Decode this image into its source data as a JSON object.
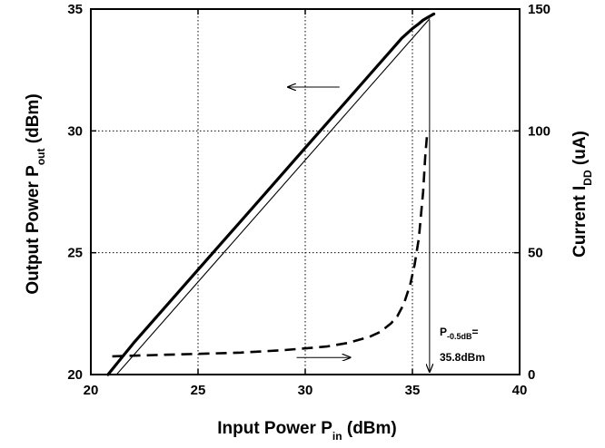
{
  "chart_data": {
    "type": "line",
    "xlabel": {
      "main": "Input Power  P",
      "sub": "in",
      "unit": "  (dBm)"
    },
    "ylabel": {
      "main": "Output Power  P",
      "sub": "out",
      "unit": "  (dBm)"
    },
    "y2label": {
      "main": "Current  I",
      "sub": "DD",
      "unit": "  (uA)"
    },
    "xlim": [
      20,
      40
    ],
    "ylim": [
      20,
      35
    ],
    "y2lim": [
      0,
      150
    ],
    "xticks": [
      20,
      25,
      30,
      35,
      40
    ],
    "yticks": [
      20,
      25,
      30,
      35
    ],
    "y2ticks": [
      0,
      50,
      100,
      150
    ],
    "grid": true,
    "series": [
      {
        "axis": "left",
        "style": "thick-solid",
        "x": [
          20.8,
          22,
          24,
          26,
          28,
          30,
          32,
          33,
          34,
          34.5,
          35,
          35.3,
          35.5,
          35.7,
          35.9,
          36.0
        ],
        "y": [
          20.0,
          21.3,
          23.3,
          25.3,
          27.3,
          29.3,
          31.3,
          32.3,
          33.3,
          33.8,
          34.2,
          34.4,
          34.55,
          34.65,
          34.75,
          34.8
        ]
      },
      {
        "axis": "left",
        "style": "thin-solid",
        "x": [
          21.2,
          35.8
        ],
        "y": [
          20.0,
          34.6
        ]
      },
      {
        "axis": "right",
        "style": "dashed",
        "x": [
          21,
          23,
          25,
          27,
          29,
          31,
          32,
          33,
          33.5,
          34,
          34.3,
          34.6,
          34.9,
          35.1,
          35.3,
          35.5,
          35.6,
          35.7
        ],
        "y": [
          7.5,
          8,
          8.5,
          9,
          10,
          11.5,
          13,
          15.5,
          17.5,
          21,
          24,
          29,
          37,
          45,
          56,
          75,
          90,
          100
        ]
      }
    ],
    "annotations": [
      {
        "text": "P",
        "sub": "-0.5dB",
        "suffix": "=",
        "line2": "35.8dBm"
      }
    ]
  }
}
